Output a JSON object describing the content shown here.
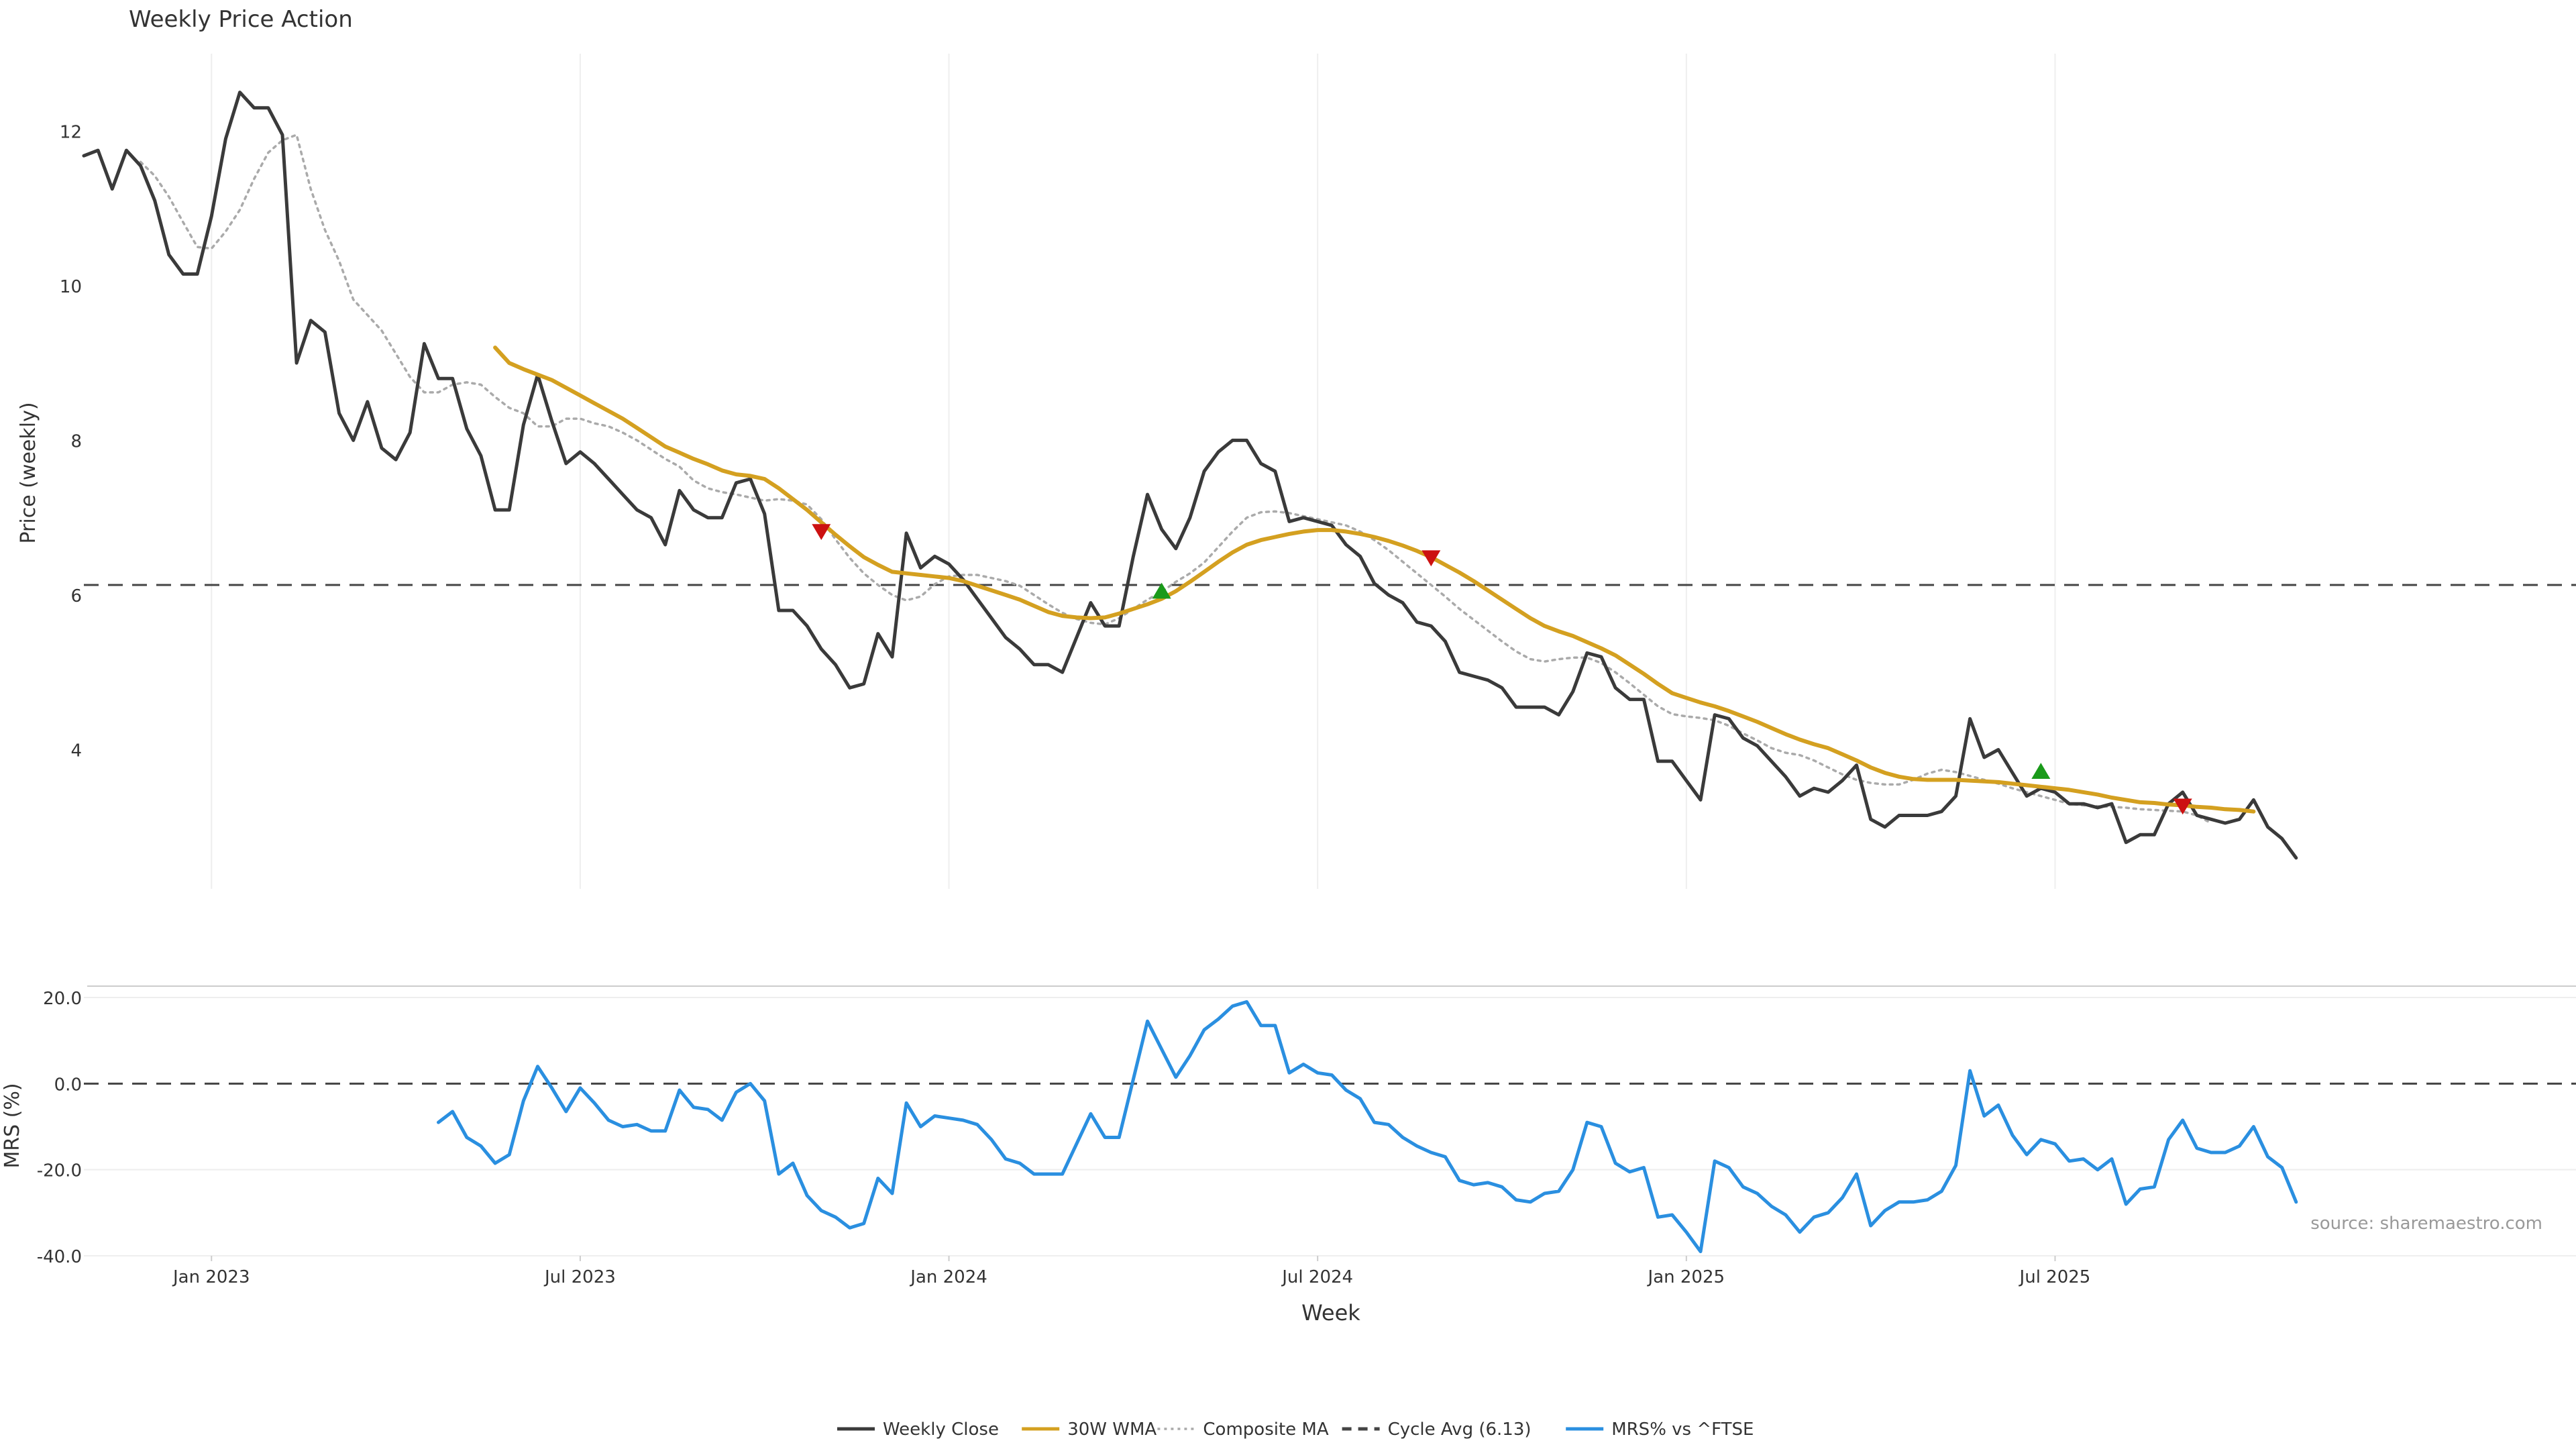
{
  "chart_data": [
    {
      "type": "line",
      "title": "Weekly Price Action",
      "ylabel": "Price (weekly)",
      "xlabel": "",
      "ylim": [
        2.2,
        13.0
      ],
      "yticks": [
        {
          "value": 4,
          "label": "4"
        },
        {
          "value": 6,
          "label": "6"
        },
        {
          "value": 8,
          "label": "8"
        },
        {
          "value": 10,
          "label": "10"
        },
        {
          "value": 12,
          "label": "12"
        }
      ],
      "x_start_week": 0,
      "x_end_week": 164,
      "series": [
        {
          "name": "Weekly Close",
          "color": "#3a3a3a",
          "style": "solid",
          "start_week": 0,
          "values": [
            11.68,
            11.75,
            11.25,
            11.75,
            11.55,
            11.1,
            10.4,
            10.15,
            10.15,
            10.9,
            11.9,
            12.5,
            12.3,
            12.3,
            11.95,
            9.0,
            9.55,
            9.4,
            8.35,
            8.0,
            8.5,
            7.9,
            7.75,
            8.1,
            9.25,
            8.8,
            8.8,
            8.15,
            7.8,
            7.1,
            7.1,
            8.2,
            8.85,
            8.25,
            7.7,
            7.85,
            7.7,
            7.5,
            7.3,
            7.1,
            7.0,
            6.65,
            7.35,
            7.1,
            7.0,
            7.0,
            7.45,
            7.5,
            7.05,
            5.8,
            5.8,
            5.6,
            5.3,
            5.1,
            4.8,
            4.85,
            5.5,
            5.2,
            6.8,
            6.35,
            6.5,
            6.4,
            6.2,
            5.95,
            5.7,
            5.45,
            5.3,
            5.1,
            5.1,
            5.0,
            5.45,
            5.9,
            5.6,
            5.6,
            6.5,
            7.3,
            6.85,
            6.6,
            7.0,
            7.6,
            7.85,
            8.0,
            8.0,
            7.7,
            7.6,
            6.95,
            7.0,
            6.95,
            6.9,
            6.65,
            6.5,
            6.15,
            6.0,
            5.9,
            5.65,
            5.6,
            5.4,
            5.0,
            4.95,
            4.9,
            4.8,
            4.55,
            4.55,
            4.55,
            4.45,
            4.75,
            5.25,
            5.2,
            4.8,
            4.65,
            4.65,
            3.85,
            3.85,
            3.6,
            3.35,
            4.45,
            4.4,
            4.15,
            4.05,
            3.85,
            3.65,
            3.4,
            3.5,
            3.45,
            3.6,
            3.8,
            3.1,
            3.0,
            3.15,
            3.15,
            3.15,
            3.2,
            3.4,
            4.4,
            3.9,
            4.0,
            3.7,
            3.4,
            3.5,
            3.45,
            3.3,
            3.3,
            3.25,
            3.3,
            2.8,
            2.9,
            2.9,
            3.3,
            3.45,
            3.15,
            3.1,
            3.05,
            3.1,
            3.35,
            3.0,
            2.85,
            2.6
          ]
        },
        {
          "name": "30W WMA",
          "color": "#d4a020",
          "style": "solid",
          "start_week": 29,
          "values": [
            9.2,
            9.0,
            8.92,
            8.85,
            8.78,
            8.68,
            8.58,
            8.48,
            8.38,
            8.28,
            8.16,
            8.04,
            7.92,
            7.84,
            7.76,
            7.69,
            7.61,
            7.56,
            7.54,
            7.5,
            7.38,
            7.24,
            7.1,
            6.94,
            6.78,
            6.63,
            6.49,
            6.39,
            6.3,
            6.28,
            6.26,
            6.24,
            6.22,
            6.18,
            6.12,
            6.06,
            6.0,
            5.94,
            5.86,
            5.78,
            5.73,
            5.71,
            5.7,
            5.71,
            5.76,
            5.82,
            5.88,
            5.95,
            6.05,
            6.17,
            6.3,
            6.43,
            6.55,
            6.65,
            6.71,
            6.75,
            6.79,
            6.82,
            6.84,
            6.84,
            6.82,
            6.79,
            6.75,
            6.7,
            6.64,
            6.57,
            6.49,
            6.39,
            6.29,
            6.18,
            6.06,
            5.94,
            5.82,
            5.7,
            5.6,
            5.53,
            5.47,
            5.39,
            5.31,
            5.22,
            5.1,
            4.98,
            4.85,
            4.73,
            4.67,
            4.61,
            4.56,
            4.5,
            4.43,
            4.36,
            4.28,
            4.2,
            4.13,
            4.07,
            4.02,
            3.94,
            3.86,
            3.77,
            3.7,
            3.65,
            3.62,
            3.61,
            3.61,
            3.61,
            3.6,
            3.59,
            3.58,
            3.56,
            3.54,
            3.52,
            3.5,
            3.48,
            3.45,
            3.42,
            3.38,
            3.35,
            3.32,
            3.31,
            3.29,
            3.28,
            3.26,
            3.25,
            3.23,
            3.22,
            3.2
          ]
        },
        {
          "name": "Composite MA",
          "color": "#aaaaaa",
          "style": "dotted",
          "start_week": 4,
          "values": [
            11.6,
            11.42,
            11.15,
            10.82,
            10.5,
            10.48,
            10.7,
            10.98,
            11.38,
            11.72,
            11.88,
            11.95,
            11.25,
            10.72,
            10.32,
            9.82,
            9.62,
            9.42,
            9.12,
            8.82,
            8.62,
            8.62,
            8.72,
            8.75,
            8.72,
            8.56,
            8.42,
            8.35,
            8.18,
            8.18,
            8.28,
            8.28,
            8.22,
            8.18,
            8.1,
            8.0,
            7.88,
            7.76,
            7.66,
            7.48,
            7.38,
            7.33,
            7.3,
            7.26,
            7.22,
            7.24,
            7.22,
            7.17,
            6.98,
            6.72,
            6.48,
            6.28,
            6.13,
            6.0,
            5.93,
            5.98,
            6.14,
            6.24,
            6.26,
            6.26,
            6.22,
            6.18,
            6.12,
            6.0,
            5.88,
            5.77,
            5.69,
            5.64,
            5.62,
            5.7,
            5.82,
            5.94,
            6.04,
            6.17,
            6.28,
            6.42,
            6.62,
            6.82,
            7.0,
            7.07,
            7.08,
            7.06,
            7.02,
            6.98,
            6.94,
            6.9,
            6.82,
            6.71,
            6.58,
            6.43,
            6.28,
            6.13,
            5.98,
            5.82,
            5.68,
            5.54,
            5.4,
            5.27,
            5.17,
            5.14,
            5.17,
            5.19,
            5.19,
            5.12,
            5.0,
            4.86,
            4.71,
            4.56,
            4.46,
            4.43,
            4.41,
            4.38,
            4.31,
            4.21,
            4.12,
            4.02,
            3.96,
            3.93,
            3.86,
            3.77,
            3.68,
            3.61,
            3.57,
            3.55,
            3.55,
            3.61,
            3.69,
            3.74,
            3.71,
            3.66,
            3.61,
            3.56,
            3.5,
            3.45,
            3.4,
            3.35,
            3.3,
            3.28,
            3.27,
            3.26,
            3.25,
            3.23,
            3.22,
            3.21,
            3.2,
            3.15,
            3.05
          ]
        }
      ],
      "reference_line": {
        "name": "Cycle Avg (6.13)",
        "value": 6.13,
        "color": "#444444",
        "style": "dashed"
      },
      "markers": [
        {
          "type": "sell",
          "week": 52,
          "value": 6.82,
          "color": "#cc1111"
        },
        {
          "type": "buy",
          "week": 76,
          "value": 6.05,
          "color": "#1a9a1a"
        },
        {
          "type": "sell",
          "week": 95,
          "value": 6.48,
          "color": "#cc1111"
        },
        {
          "type": "buy",
          "week": 138,
          "value": 3.72,
          "color": "#1a9a1a"
        },
        {
          "type": "sell",
          "week": 148,
          "value": 3.27,
          "color": "#cc1111"
        }
      ]
    },
    {
      "type": "line",
      "title": "",
      "ylabel": "MRS (%)",
      "xlabel": "Week",
      "ylim": [
        -40.0,
        20.0
      ],
      "yticks": [
        {
          "value": -40,
          "label": "-40.0"
        },
        {
          "value": -20,
          "label": "-20.0"
        },
        {
          "value": 0,
          "label": "0.0"
        },
        {
          "value": 20,
          "label": "20.0"
        }
      ],
      "xticks": [
        {
          "week": 9,
          "label": "Jan 2023"
        },
        {
          "week": 35,
          "label": "Jul 2023"
        },
        {
          "week": 61,
          "label": "Jan 2024"
        },
        {
          "week": 87,
          "label": "Jul 2024"
        },
        {
          "week": 113,
          "label": "Jan 2025"
        },
        {
          "week": 139,
          "label": "Jul 2025"
        }
      ],
      "series": [
        {
          "name": "MRS% vs ^FTSE",
          "color": "#2a8fe0",
          "style": "solid",
          "start_week": 25,
          "values": [
            -9,
            -6.5,
            -12.5,
            -14.5,
            -18.5,
            -16.5,
            -4,
            4,
            -1,
            -6.5,
            -1,
            -4.5,
            -8.5,
            -10,
            -9.5,
            -11,
            -11,
            -1.5,
            -5.5,
            -6,
            -8.5,
            -2,
            0,
            -4,
            -21,
            -18.5,
            -26,
            -29.5,
            -31,
            -33.5,
            -32.5,
            -22,
            -25.5,
            -4.5,
            -10,
            -7.5,
            -8,
            -8.5,
            -9.5,
            -13,
            -17.5,
            -18.5,
            -21,
            -21,
            -21,
            -14,
            -7,
            -12.5,
            -12.5,
            1,
            14.5,
            8,
            1.5,
            6.5,
            12.5,
            15,
            18,
            19,
            13.5,
            13.5,
            2.5,
            4.5,
            2.5,
            2,
            -1.5,
            -3.5,
            -9,
            -9.5,
            -12.5,
            -14.5,
            -16,
            -17,
            -22.5,
            -23.5,
            -23,
            -24,
            -27,
            -27.5,
            -25.5,
            -25,
            -20,
            -9,
            -10,
            -18.5,
            -20.5,
            -19.5,
            -31,
            -30.5,
            -34.5,
            -39,
            -18,
            -19.5,
            -24,
            -25.5,
            -28.5,
            -30.5,
            -34.5,
            -31,
            -30,
            -26.5,
            -21,
            -33,
            -29.5,
            -27.5,
            -27.5,
            -27,
            -25,
            -19,
            3,
            -7.5,
            -5,
            -12,
            -16.5,
            -13,
            -14,
            -18,
            -17.5,
            -20,
            -17.5,
            -28,
            -24.5,
            -24,
            -13,
            -8.5,
            -15,
            -16,
            -16,
            -14.5,
            -10,
            -17,
            -19.5,
            -27.5
          ]
        }
      ],
      "reference_line": {
        "value": 0.0,
        "color": "#444444",
        "style": "dashed"
      },
      "source_note": "source: sharemaestro.com"
    }
  ],
  "legend": [
    {
      "label": "Weekly Close",
      "color": "#3a3a3a",
      "style": "solid"
    },
    {
      "label": "30W WMA",
      "color": "#d4a020",
      "style": "solid"
    },
    {
      "label": "Composite MA",
      "color": "#aaaaaa",
      "style": "dotted"
    },
    {
      "label": "Cycle Avg (6.13)",
      "color": "#444444",
      "style": "dashed"
    },
    {
      "label": "MRS% vs ^FTSE",
      "color": "#2a8fe0",
      "style": "solid"
    }
  ]
}
